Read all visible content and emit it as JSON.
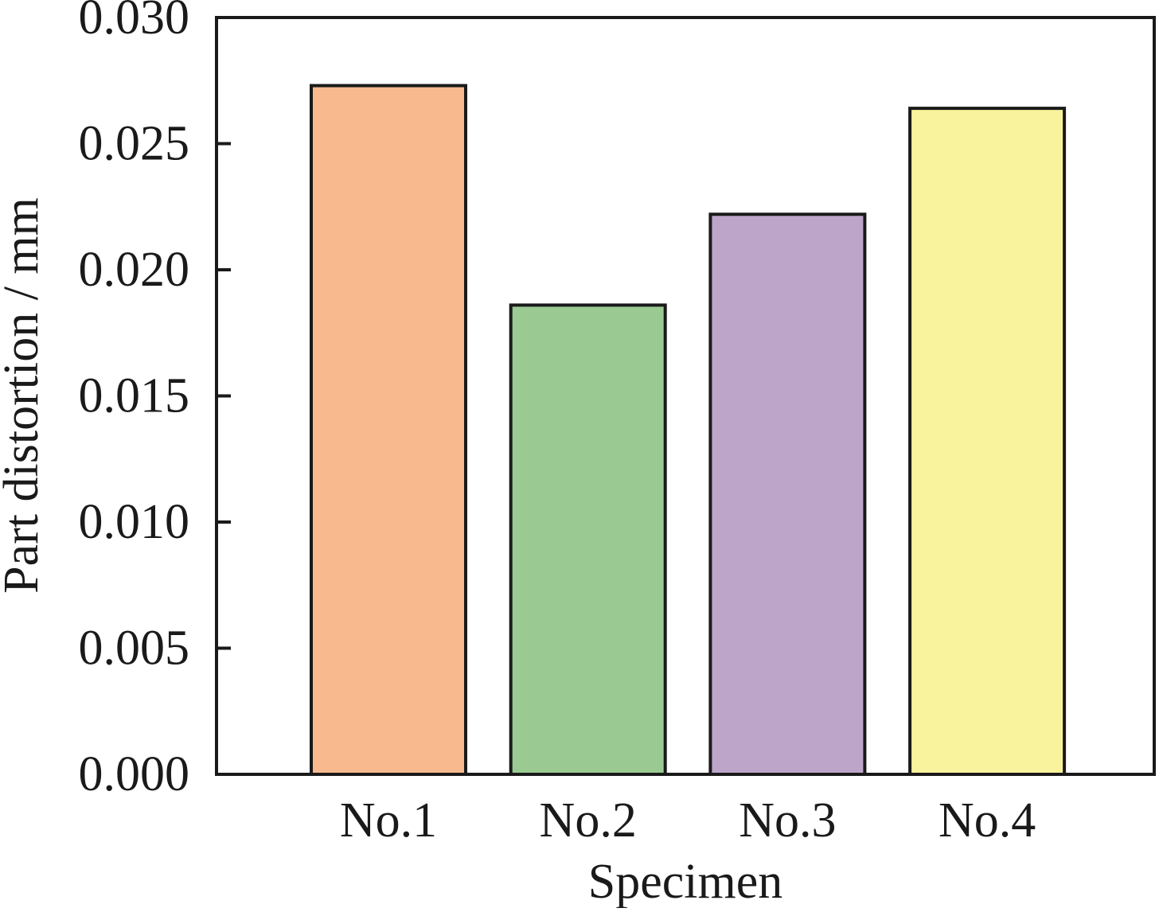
{
  "chart_data": {
    "type": "bar",
    "categories": [
      "No.1",
      "No.2",
      "No.3",
      "No.4"
    ],
    "values": [
      0.0273,
      0.0186,
      0.0222,
      0.0264
    ],
    "colors": [
      "#F8B98F",
      "#9BC992",
      "#BDA5CA",
      "#F8F39C"
    ],
    "xlabel": "Specimen",
    "ylabel": "Part distortion / mm",
    "ylim": [
      0,
      0.03
    ],
    "yticks": [
      "0.000",
      "0.005",
      "0.010",
      "0.015",
      "0.020",
      "0.025",
      "0.030"
    ],
    "grid": false,
    "legend": "none"
  }
}
